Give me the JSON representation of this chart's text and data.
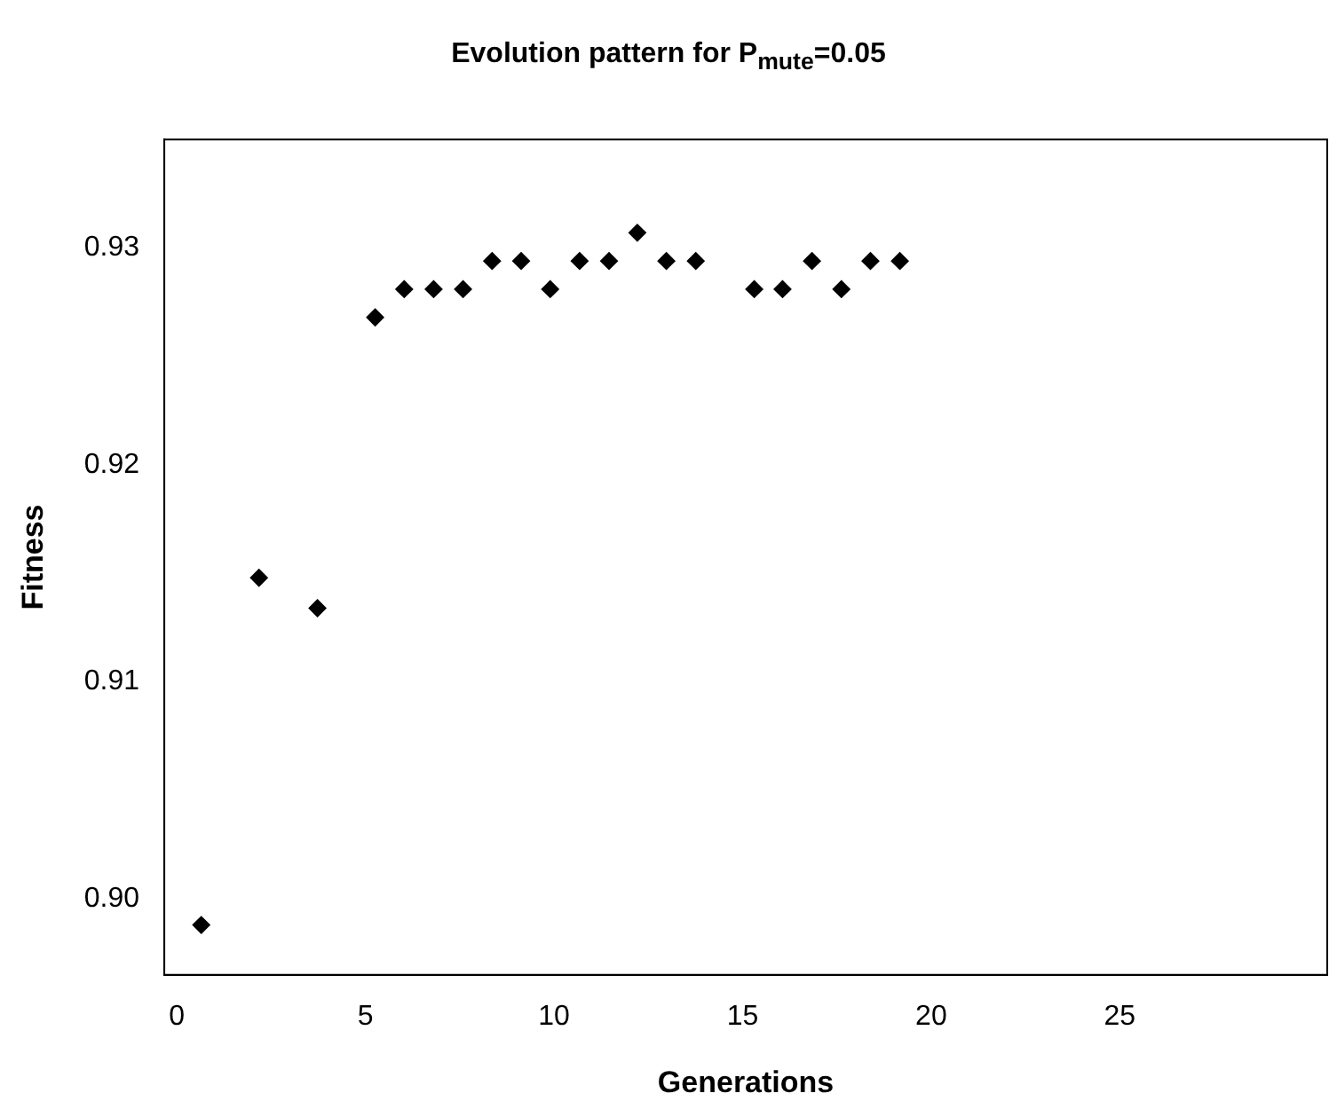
{
  "chart_data": {
    "type": "scatter",
    "title": "Evolution pattern for P$_{mute}$=0.05",
    "xlabel": "Generations",
    "ylabel": "Fitness",
    "x": [
      0.65,
      2.18,
      3.73,
      5.26,
      6.03,
      6.81,
      7.59,
      8.36,
      9.13,
      9.9,
      10.68,
      11.46,
      12.21,
      12.98,
      13.76,
      15.31,
      16.06,
      16.84,
      17.62,
      18.39,
      19.17
    ],
    "values": [
      0.8988,
      0.9148,
      0.9134,
      0.9268,
      0.9281,
      0.9281,
      0.9281,
      0.9294,
      0.9294,
      0.9281,
      0.9294,
      0.9294,
      0.9307,
      0.9294,
      0.9294,
      0.9281,
      0.9281,
      0.9294,
      0.9281,
      0.9294,
      0.9294
    ],
    "color": "#000000",
    "marker": "diamond",
    "xlim": [
      -0.33,
      30.5
    ],
    "xticks": [
      0,
      5,
      10,
      15,
      20,
      25
    ],
    "ylim": [
      0.8965,
      0.935
    ],
    "yticks": [
      {
        "value": 0.9,
        "label": "0.90"
      },
      {
        "value": 0.91,
        "label": "0.91"
      },
      {
        "value": 0.92,
        "label": "0.92"
      },
      {
        "value": 0.93,
        "label": "0.93"
      }
    ],
    "grid": false,
    "legend": false
  }
}
